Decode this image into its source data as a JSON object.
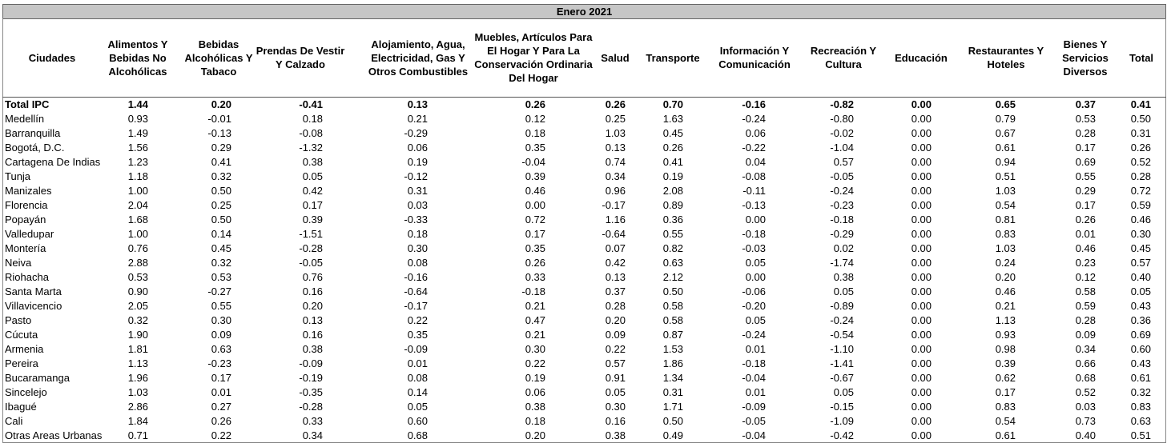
{
  "header": {
    "title": "Enero 2021"
  },
  "table": {
    "columns": [
      "Ciudades",
      "Alimentos Y Bebidas No Alcohólicas",
      "Bebidas Alcohólicas Y Tabaco",
      "Prendas De Vestir Y Calzado",
      "Alojamiento, Agua, Electricidad, Gas Y Otros Combustibles",
      "Muebles, Artículos Para El Hogar Y Para La Conservación Ordinaria Del Hogar",
      "Salud",
      "Transporte",
      "Información Y Comunicación",
      "Recreación Y Cultura",
      "Educación",
      "Restaurantes Y Hoteles",
      "Bienes Y Servicios Diversos",
      "Total"
    ],
    "rows": [
      [
        "Total IPC",
        "1.44",
        "0.20",
        "-0.41",
        "0.13",
        "0.26",
        "0.26",
        "0.70",
        "-0.16",
        "-0.82",
        "0.00",
        "0.65",
        "0.37",
        "0.41"
      ],
      [
        "Medellín",
        "0.93",
        "-0.01",
        "0.18",
        "0.21",
        "0.12",
        "0.25",
        "1.63",
        "-0.24",
        "-0.80",
        "0.00",
        "0.79",
        "0.53",
        "0.50"
      ],
      [
        "Barranquilla",
        "1.49",
        "-0.13",
        "-0.08",
        "-0.29",
        "0.18",
        "1.03",
        "0.45",
        "0.06",
        "-0.02",
        "0.00",
        "0.67",
        "0.28",
        "0.31"
      ],
      [
        "Bogotá, D.C.",
        "1.56",
        "0.29",
        "-1.32",
        "0.06",
        "0.35",
        "0.13",
        "0.26",
        "-0.22",
        "-1.04",
        "0.00",
        "0.61",
        "0.17",
        "0.26"
      ],
      [
        "Cartagena De Indias",
        "1.23",
        "0.41",
        "0.38",
        "0.19",
        "-0.04",
        "0.74",
        "0.41",
        "0.04",
        "0.57",
        "0.00",
        "0.94",
        "0.69",
        "0.52"
      ],
      [
        "Tunja",
        "1.18",
        "0.32",
        "0.05",
        "-0.12",
        "0.39",
        "0.34",
        "0.19",
        "-0.08",
        "-0.05",
        "0.00",
        "0.51",
        "0.55",
        "0.28"
      ],
      [
        "Manizales",
        "1.00",
        "0.50",
        "0.42",
        "0.31",
        "0.46",
        "0.96",
        "2.08",
        "-0.11",
        "-0.24",
        "0.00",
        "1.03",
        "0.29",
        "0.72"
      ],
      [
        "Florencia",
        "2.04",
        "0.25",
        "0.17",
        "0.03",
        "0.00",
        "-0.17",
        "0.89",
        "-0.13",
        "-0.23",
        "0.00",
        "0.54",
        "0.17",
        "0.59"
      ],
      [
        "Popayán",
        "1.68",
        "0.50",
        "0.39",
        "-0.33",
        "0.72",
        "1.16",
        "0.36",
        "0.00",
        "-0.18",
        "0.00",
        "0.81",
        "0.26",
        "0.46"
      ],
      [
        "Valledupar",
        "1.00",
        "0.14",
        "-1.51",
        "0.18",
        "0.17",
        "-0.64",
        "0.55",
        "-0.18",
        "-0.29",
        "0.00",
        "0.83",
        "0.01",
        "0.30"
      ],
      [
        "Montería",
        "0.76",
        "0.45",
        "-0.28",
        "0.30",
        "0.35",
        "0.07",
        "0.82",
        "-0.03",
        "0.02",
        "0.00",
        "1.03",
        "0.46",
        "0.45"
      ],
      [
        "Neiva",
        "2.88",
        "0.32",
        "-0.05",
        "0.08",
        "0.26",
        "0.42",
        "0.63",
        "0.05",
        "-1.74",
        "0.00",
        "0.24",
        "0.23",
        "0.57"
      ],
      [
        "Riohacha",
        "0.53",
        "0.53",
        "0.76",
        "-0.16",
        "0.33",
        "0.13",
        "2.12",
        "0.00",
        "0.38",
        "0.00",
        "0.20",
        "0.12",
        "0.40"
      ],
      [
        "Santa Marta",
        "0.90",
        "-0.27",
        "0.16",
        "-0.64",
        "-0.18",
        "0.37",
        "0.50",
        "-0.06",
        "0.05",
        "0.00",
        "0.46",
        "0.58",
        "0.05"
      ],
      [
        "Villavicencio",
        "2.05",
        "0.55",
        "0.20",
        "-0.17",
        "0.21",
        "0.28",
        "0.58",
        "-0.20",
        "-0.89",
        "0.00",
        "0.21",
        "0.59",
        "0.43"
      ],
      [
        "Pasto",
        "0.32",
        "0.30",
        "0.13",
        "0.22",
        "0.47",
        "0.20",
        "0.58",
        "0.05",
        "-0.24",
        "0.00",
        "1.13",
        "0.28",
        "0.36"
      ],
      [
        "Cúcuta",
        "1.90",
        "0.09",
        "0.16",
        "0.35",
        "0.21",
        "0.09",
        "0.87",
        "-0.24",
        "-0.54",
        "0.00",
        "0.93",
        "0.09",
        "0.69"
      ],
      [
        "Armenia",
        "1.81",
        "0.63",
        "0.38",
        "-0.09",
        "0.30",
        "0.22",
        "1.53",
        "0.01",
        "-1.10",
        "0.00",
        "0.98",
        "0.34",
        "0.60"
      ],
      [
        "Pereira",
        "1.13",
        "-0.23",
        "-0.09",
        "0.01",
        "0.22",
        "0.57",
        "1.86",
        "-0.18",
        "-1.41",
        "0.00",
        "0.39",
        "0.66",
        "0.43"
      ],
      [
        "Bucaramanga",
        "1.96",
        "0.17",
        "-0.19",
        "0.08",
        "0.19",
        "0.91",
        "1.34",
        "-0.04",
        "-0.67",
        "0.00",
        "0.62",
        "0.68",
        "0.61"
      ],
      [
        "Sincelejo",
        "1.03",
        "0.01",
        "-0.35",
        "0.14",
        "0.06",
        "0.05",
        "0.31",
        "0.01",
        "0.05",
        "0.00",
        "0.17",
        "0.52",
        "0.32"
      ],
      [
        "Ibagué",
        "2.86",
        "0.27",
        "-0.28",
        "0.05",
        "0.38",
        "0.30",
        "1.71",
        "-0.09",
        "-0.15",
        "0.00",
        "0.83",
        "0.03",
        "0.83"
      ],
      [
        "Cali",
        "1.84",
        "0.26",
        "0.33",
        "0.60",
        "0.18",
        "0.16",
        "0.50",
        "-0.05",
        "-1.09",
        "0.00",
        "0.54",
        "0.73",
        "0.63"
      ],
      [
        "Otras Areas Urbanas",
        "0.71",
        "0.22",
        "0.34",
        "0.68",
        "0.20",
        "0.38",
        "0.49",
        "-0.04",
        "-0.42",
        "0.00",
        "0.61",
        "0.40",
        "0.51"
      ]
    ]
  }
}
